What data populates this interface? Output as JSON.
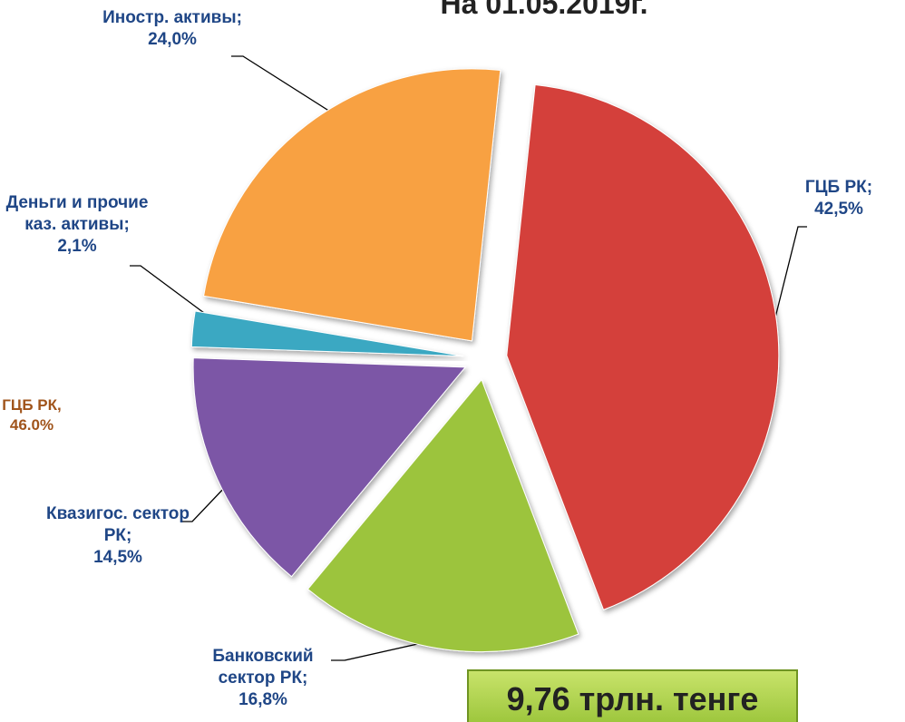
{
  "chart_data": {
    "type": "pie",
    "title": "На 01.05.2019г.",
    "categories": [
      "ГЦБ РК;",
      "Банковский сектор РК;",
      "Квазигос. сектор РК;",
      "Деньги и прочие каз. активы;",
      "Иностр. активы;"
    ],
    "values": [
      42.5,
      16.8,
      14.5,
      2.1,
      24.0
    ],
    "value_labels": [
      "42,5%",
      "16,8%",
      "14,5%",
      "2,1%",
      "24,0%"
    ],
    "colors": [
      "#d43f3a",
      "#9cc43e",
      "#7b56a6",
      "#3aa8c2",
      "#f8a143"
    ],
    "side_note": [
      "ГЦБ РК,",
      "46.0%"
    ],
    "total": "9,76 трлн. тенге"
  }
}
